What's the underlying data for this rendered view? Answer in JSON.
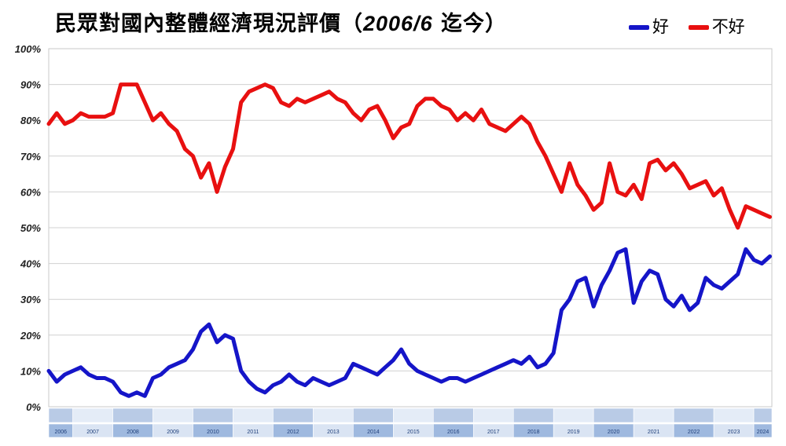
{
  "title": {
    "prefix": "民眾對國內整體經濟現況評價（",
    "year": "2006/6",
    "suffix": " 迄今）"
  },
  "legend": [
    {
      "label": "好",
      "color": "#1515c8"
    },
    {
      "label": "不好",
      "color": "#e81010"
    }
  ],
  "chart_data": {
    "type": "line",
    "ylim": [
      0,
      100
    ],
    "yticks": [
      "0%",
      "10%",
      "20%",
      "30%",
      "40%",
      "50%",
      "60%",
      "70%",
      "80%",
      "90%",
      "100%"
    ],
    "years": [
      "2006",
      "2007",
      "2008",
      "2009",
      "2010",
      "2011",
      "2012",
      "2013",
      "2014",
      "2015",
      "2016",
      "2017",
      "2018",
      "2019",
      "2020",
      "2021",
      "2022",
      "2023",
      "2024"
    ],
    "grid": true,
    "legend_position": "top-right",
    "series": [
      {
        "name": "好",
        "color": "#1515c8",
        "x": [
          2006.4,
          2006.6,
          2006.8,
          2007.0,
          2007.2,
          2007.4,
          2007.6,
          2007.8,
          2008.0,
          2008.2,
          2008.4,
          2008.6,
          2008.8,
          2009.0,
          2009.2,
          2009.4,
          2009.6,
          2009.8,
          2010.0,
          2010.2,
          2010.4,
          2010.6,
          2010.8,
          2011.0,
          2011.2,
          2011.4,
          2011.6,
          2011.8,
          2012.0,
          2012.2,
          2012.4,
          2012.6,
          2012.8,
          2013.0,
          2013.2,
          2013.4,
          2013.6,
          2013.8,
          2014.0,
          2014.2,
          2014.4,
          2014.6,
          2014.8,
          2015.0,
          2015.2,
          2015.4,
          2015.6,
          2015.8,
          2016.0,
          2016.2,
          2016.4,
          2016.6,
          2016.8,
          2017.0,
          2017.2,
          2017.4,
          2017.6,
          2017.8,
          2018.0,
          2018.2,
          2018.4,
          2018.6,
          2018.8,
          2019.0,
          2019.2,
          2019.4,
          2019.6,
          2019.8,
          2020.0,
          2020.2,
          2020.4,
          2020.6,
          2020.8,
          2021.0,
          2021.2,
          2021.4,
          2021.6,
          2021.8,
          2022.0,
          2022.2,
          2022.4,
          2022.6,
          2022.8,
          2023.0,
          2023.2,
          2023.4,
          2023.6,
          2023.8,
          2024.0,
          2024.2,
          2024.4
        ],
        "values": [
          10,
          7,
          9,
          10,
          11,
          9,
          8,
          8,
          7,
          4,
          3,
          4,
          3,
          8,
          9,
          11,
          12,
          13,
          16,
          21,
          23,
          18,
          20,
          19,
          10,
          7,
          5,
          4,
          6,
          7,
          9,
          7,
          6,
          8,
          7,
          6,
          7,
          8,
          12,
          11,
          10,
          9,
          11,
          13,
          16,
          12,
          10,
          9,
          8,
          7,
          8,
          8,
          7,
          8,
          9,
          10,
          11,
          12,
          13,
          12,
          14,
          11,
          12,
          15,
          27,
          30,
          35,
          36,
          28,
          34,
          38,
          43,
          44,
          29,
          35,
          38,
          37,
          30,
          28,
          31,
          27,
          29,
          36,
          34,
          33,
          35,
          37,
          44,
          41,
          40,
          42
        ]
      },
      {
        "name": "不好",
        "color": "#e81010",
        "x": [
          2006.4,
          2006.6,
          2006.8,
          2007.0,
          2007.2,
          2007.4,
          2007.6,
          2007.8,
          2008.0,
          2008.2,
          2008.4,
          2008.6,
          2008.8,
          2009.0,
          2009.2,
          2009.4,
          2009.6,
          2009.8,
          2010.0,
          2010.2,
          2010.4,
          2010.6,
          2010.8,
          2011.0,
          2011.2,
          2011.4,
          2011.6,
          2011.8,
          2012.0,
          2012.2,
          2012.4,
          2012.6,
          2012.8,
          2013.0,
          2013.2,
          2013.4,
          2013.6,
          2013.8,
          2014.0,
          2014.2,
          2014.4,
          2014.6,
          2014.8,
          2015.0,
          2015.2,
          2015.4,
          2015.6,
          2015.8,
          2016.0,
          2016.2,
          2016.4,
          2016.6,
          2016.8,
          2017.0,
          2017.2,
          2017.4,
          2017.6,
          2017.8,
          2018.0,
          2018.2,
          2018.4,
          2018.6,
          2018.8,
          2019.0,
          2019.2,
          2019.4,
          2019.6,
          2019.8,
          2020.0,
          2020.2,
          2020.4,
          2020.6,
          2020.8,
          2021.0,
          2021.2,
          2021.4,
          2021.6,
          2021.8,
          2022.0,
          2022.2,
          2022.4,
          2022.6,
          2022.8,
          2023.0,
          2023.2,
          2023.4,
          2023.6,
          2023.8,
          2024.0,
          2024.2,
          2024.4
        ],
        "values": [
          79,
          82,
          79,
          80,
          82,
          81,
          81,
          81,
          82,
          90,
          90,
          90,
          85,
          80,
          82,
          79,
          77,
          72,
          70,
          64,
          68,
          60,
          67,
          72,
          85,
          88,
          89,
          90,
          89,
          85,
          84,
          86,
          85,
          86,
          87,
          88,
          86,
          85,
          82,
          80,
          83,
          84,
          80,
          75,
          78,
          79,
          84,
          86,
          86,
          84,
          83,
          80,
          82,
          80,
          83,
          79,
          78,
          77,
          79,
          81,
          79,
          74,
          70,
          65,
          60,
          68,
          62,
          59,
          55,
          57,
          68,
          60,
          59,
          62,
          58,
          68,
          69,
          66,
          68,
          65,
          61,
          62,
          63,
          59,
          61,
          55,
          50,
          56,
          55,
          54,
          53
        ]
      }
    ]
  }
}
